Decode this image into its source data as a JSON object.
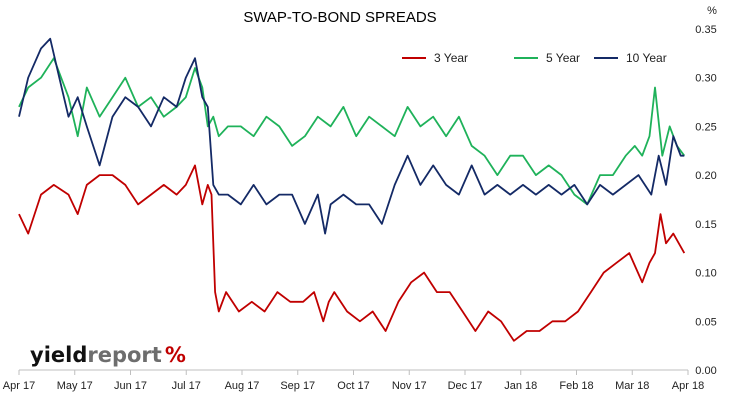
{
  "chart_data": {
    "type": "line",
    "title": "SWAP-TO-BOND SPREADS",
    "ylabel": "%",
    "ylim": [
      0,
      0.35
    ],
    "y_ticks": [
      "0.00",
      "0.05",
      "0.10",
      "0.15",
      "0.20",
      "0.25",
      "0.30",
      "0.35"
    ],
    "x_ticks": [
      "Apr 17",
      "May 17",
      "Jun 17",
      "Jul 17",
      "Aug 17",
      "Sep 17",
      "Oct 17",
      "Nov 17",
      "Dec 17",
      "Jan 18",
      "Feb 18",
      "Mar 18",
      "Apr 18"
    ],
    "x_range": [
      "2017-04-03",
      "2018-04-03"
    ],
    "grid": false,
    "legend_position": "top-right",
    "series": [
      {
        "name": "3 Year",
        "color": "#c00000",
        "x": [
          "2017-04-03",
          "2017-04-08",
          "2017-04-15",
          "2017-04-22",
          "2017-04-30",
          "2017-05-05",
          "2017-05-10",
          "2017-05-17",
          "2017-05-24",
          "2017-05-31",
          "2017-06-07",
          "2017-06-14",
          "2017-06-21",
          "2017-06-28",
          "2017-07-03",
          "2017-07-08",
          "2017-07-12",
          "2017-07-15",
          "2017-07-17",
          "2017-07-19",
          "2017-07-21",
          "2017-07-25",
          "2017-08-01",
          "2017-08-08",
          "2017-08-15",
          "2017-08-22",
          "2017-08-29",
          "2017-09-05",
          "2017-09-11",
          "2017-09-16",
          "2017-09-19",
          "2017-09-22",
          "2017-09-29",
          "2017-10-06",
          "2017-10-13",
          "2017-10-20",
          "2017-10-27",
          "2017-11-03",
          "2017-11-10",
          "2017-11-17",
          "2017-11-24",
          "2017-12-01",
          "2017-12-08",
          "2017-12-15",
          "2017-12-22",
          "2017-12-29",
          "2018-01-05",
          "2018-01-12",
          "2018-01-19",
          "2018-01-26",
          "2018-02-02",
          "2018-02-09",
          "2018-02-16",
          "2018-02-23",
          "2018-03-02",
          "2018-03-09",
          "2018-03-13",
          "2018-03-16",
          "2018-03-19",
          "2018-03-22",
          "2018-03-26",
          "2018-03-29",
          "2018-04-01"
        ],
        "y": [
          0.16,
          0.14,
          0.18,
          0.19,
          0.18,
          0.16,
          0.19,
          0.2,
          0.2,
          0.19,
          0.17,
          0.18,
          0.19,
          0.18,
          0.19,
          0.21,
          0.17,
          0.19,
          0.18,
          0.08,
          0.06,
          0.08,
          0.06,
          0.07,
          0.06,
          0.08,
          0.07,
          0.07,
          0.08,
          0.05,
          0.07,
          0.08,
          0.06,
          0.05,
          0.06,
          0.04,
          0.07,
          0.09,
          0.1,
          0.08,
          0.08,
          0.06,
          0.04,
          0.06,
          0.05,
          0.03,
          0.04,
          0.04,
          0.05,
          0.05,
          0.06,
          0.08,
          0.1,
          0.11,
          0.12,
          0.09,
          0.11,
          0.12,
          0.16,
          0.13,
          0.14,
          0.13,
          0.12
        ]
      },
      {
        "name": "5 Year",
        "color": "#1fb25a",
        "x": [
          "2017-04-03",
          "2017-04-08",
          "2017-04-15",
          "2017-04-22",
          "2017-04-30",
          "2017-05-05",
          "2017-05-10",
          "2017-05-17",
          "2017-05-24",
          "2017-05-31",
          "2017-06-07",
          "2017-06-14",
          "2017-06-21",
          "2017-06-28",
          "2017-07-03",
          "2017-07-08",
          "2017-07-12",
          "2017-07-15",
          "2017-07-18",
          "2017-07-21",
          "2017-07-26",
          "2017-08-02",
          "2017-08-09",
          "2017-08-16",
          "2017-08-23",
          "2017-08-30",
          "2017-09-06",
          "2017-09-13",
          "2017-09-20",
          "2017-09-27",
          "2017-10-04",
          "2017-10-11",
          "2017-10-18",
          "2017-10-25",
          "2017-11-01",
          "2017-11-08",
          "2017-11-15",
          "2017-11-22",
          "2017-11-29",
          "2017-12-06",
          "2017-12-13",
          "2017-12-20",
          "2017-12-27",
          "2018-01-03",
          "2018-01-10",
          "2018-01-17",
          "2018-01-24",
          "2018-01-31",
          "2018-02-07",
          "2018-02-14",
          "2018-02-21",
          "2018-02-28",
          "2018-03-05",
          "2018-03-09",
          "2018-03-13",
          "2018-03-16",
          "2018-03-20",
          "2018-03-24",
          "2018-03-28",
          "2018-04-01"
        ],
        "y": [
          0.27,
          0.29,
          0.3,
          0.32,
          0.28,
          0.24,
          0.29,
          0.26,
          0.28,
          0.3,
          0.27,
          0.28,
          0.26,
          0.27,
          0.28,
          0.31,
          0.29,
          0.25,
          0.26,
          0.24,
          0.25,
          0.25,
          0.24,
          0.26,
          0.25,
          0.23,
          0.24,
          0.26,
          0.25,
          0.27,
          0.24,
          0.26,
          0.25,
          0.24,
          0.27,
          0.25,
          0.26,
          0.24,
          0.26,
          0.23,
          0.22,
          0.2,
          0.22,
          0.22,
          0.2,
          0.21,
          0.2,
          0.18,
          0.17,
          0.2,
          0.2,
          0.22,
          0.23,
          0.22,
          0.24,
          0.29,
          0.22,
          0.25,
          0.23,
          0.22
        ]
      },
      {
        "name": "10 Year",
        "color": "#142a66",
        "x": [
          "2017-04-03",
          "2017-04-08",
          "2017-04-15",
          "2017-04-20",
          "2017-04-25",
          "2017-04-30",
          "2017-05-05",
          "2017-05-10",
          "2017-05-17",
          "2017-05-24",
          "2017-05-31",
          "2017-06-07",
          "2017-06-14",
          "2017-06-21",
          "2017-06-28",
          "2017-07-03",
          "2017-07-08",
          "2017-07-12",
          "2017-07-15",
          "2017-07-18",
          "2017-07-21",
          "2017-07-26",
          "2017-08-02",
          "2017-08-09",
          "2017-08-16",
          "2017-08-23",
          "2017-08-30",
          "2017-09-06",
          "2017-09-13",
          "2017-09-17",
          "2017-09-20",
          "2017-09-27",
          "2017-10-04",
          "2017-10-11",
          "2017-10-18",
          "2017-10-25",
          "2017-11-01",
          "2017-11-08",
          "2017-11-15",
          "2017-11-22",
          "2017-11-29",
          "2017-12-06",
          "2017-12-13",
          "2017-12-20",
          "2017-12-27",
          "2018-01-03",
          "2018-01-10",
          "2018-01-17",
          "2018-01-24",
          "2018-01-31",
          "2018-02-07",
          "2018-02-14",
          "2018-02-21",
          "2018-02-28",
          "2018-03-07",
          "2018-03-14",
          "2018-03-18",
          "2018-03-22",
          "2018-03-26",
          "2018-03-30",
          "2018-04-01"
        ],
        "y": [
          0.26,
          0.3,
          0.33,
          0.34,
          0.3,
          0.26,
          0.28,
          0.25,
          0.21,
          0.26,
          0.28,
          0.27,
          0.25,
          0.28,
          0.27,
          0.3,
          0.32,
          0.28,
          0.27,
          0.19,
          0.18,
          0.18,
          0.17,
          0.19,
          0.17,
          0.18,
          0.18,
          0.15,
          0.18,
          0.14,
          0.17,
          0.18,
          0.17,
          0.17,
          0.15,
          0.19,
          0.22,
          0.19,
          0.21,
          0.19,
          0.18,
          0.21,
          0.18,
          0.19,
          0.18,
          0.19,
          0.18,
          0.19,
          0.18,
          0.19,
          0.17,
          0.19,
          0.18,
          0.19,
          0.2,
          0.18,
          0.22,
          0.19,
          0.24,
          0.22,
          0.22
        ]
      }
    ]
  },
  "logo": {
    "word1": "yield",
    "word2": "report",
    "symbol": "%"
  }
}
